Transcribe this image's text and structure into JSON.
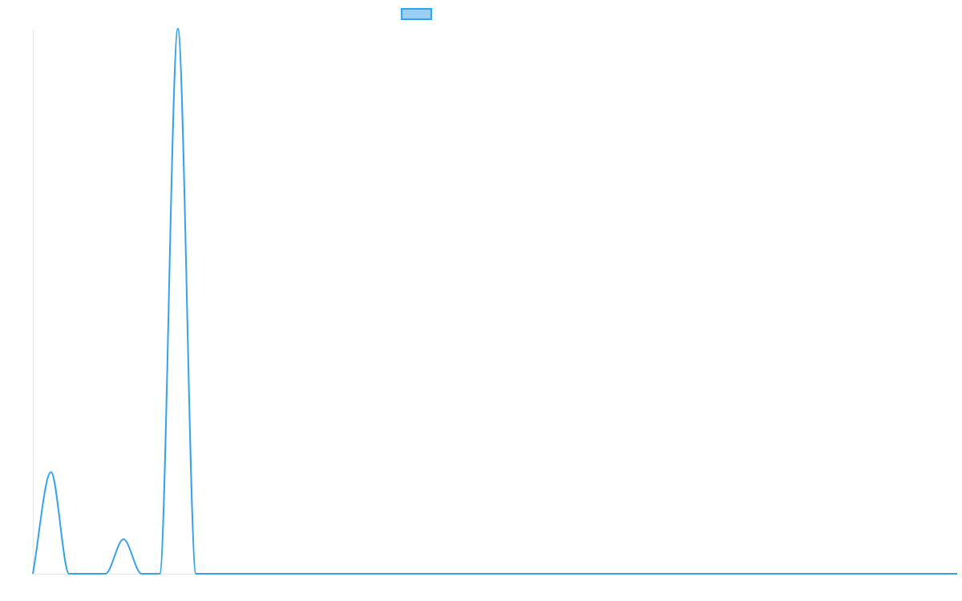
{
  "chart_data": {
    "type": "line",
    "title": "",
    "xlabel": "",
    "ylabel": "",
    "xlim": [
      0,
      51
    ],
    "ylim": [
      0,
      30
    ],
    "grid": false,
    "legend": "top-center",
    "x": [
      0,
      1,
      2,
      3,
      4,
      5,
      6,
      7,
      8,
      9,
      10,
      11,
      12,
      13,
      14,
      15,
      16,
      17,
      18,
      19,
      20,
      21,
      22,
      23,
      24,
      25,
      26,
      27,
      28,
      29,
      30,
      31,
      32,
      33,
      34,
      35,
      36,
      37,
      38,
      39,
      40,
      41,
      42,
      43,
      44,
      45,
      46,
      47,
      48,
      49,
      50,
      51
    ],
    "series": [
      {
        "values": [
          0,
          5.6,
          0,
          0,
          0,
          1.9,
          0,
          0,
          30,
          0,
          0,
          0,
          0,
          0,
          0,
          0,
          0,
          0,
          0,
          0,
          0,
          0,
          0,
          0,
          0,
          0,
          0,
          0,
          0,
          0,
          0,
          0,
          0,
          0,
          0,
          0,
          0,
          0,
          0,
          0,
          0,
          0,
          0,
          0,
          0,
          0,
          0,
          0,
          0,
          0,
          0,
          0
        ],
        "color": "#36a2eb",
        "fill": "#9ad0f5"
      }
    ]
  }
}
